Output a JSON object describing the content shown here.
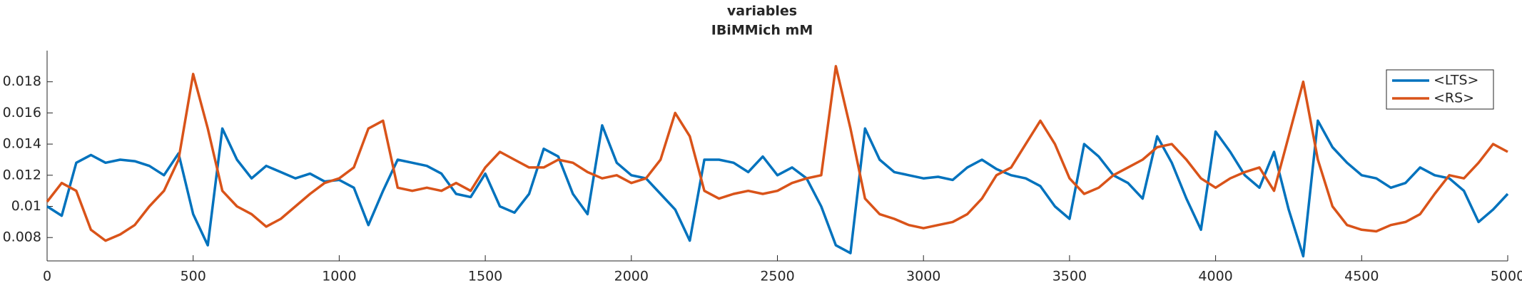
{
  "chart_data": {
    "type": "line",
    "title": "variables",
    "subtitle": "IBiMMich mM",
    "x": [
      0,
      50,
      100,
      150,
      200,
      250,
      300,
      350,
      400,
      450,
      500,
      550,
      600,
      650,
      700,
      750,
      800,
      850,
      900,
      950,
      1000,
      1050,
      1100,
      1150,
      1200,
      1250,
      1300,
      1350,
      1400,
      1450,
      1500,
      1550,
      1600,
      1650,
      1700,
      1750,
      1800,
      1850,
      1900,
      1950,
      2000,
      2050,
      2100,
      2150,
      2200,
      2250,
      2300,
      2350,
      2400,
      2450,
      2500,
      2550,
      2600,
      2650,
      2700,
      2750,
      2800,
      2850,
      2900,
      2950,
      3000,
      3050,
      3100,
      3150,
      3200,
      3250,
      3300,
      3350,
      3400,
      3450,
      3500,
      3550,
      3600,
      3650,
      3700,
      3750,
      3800,
      3850,
      3900,
      3950,
      4000,
      4050,
      4100,
      4150,
      4200,
      4250,
      4300,
      4350,
      4400,
      4450,
      4500,
      4550,
      4600,
      4650,
      4700,
      4750,
      4800,
      4850,
      4900,
      4950,
      5000
    ],
    "series": [
      {
        "name": "<LTS>",
        "color": "#0072bd",
        "values": [
          0.01,
          0.0094,
          0.0128,
          0.0133,
          0.0128,
          0.013,
          0.0129,
          0.0126,
          0.012,
          0.0134,
          0.0095,
          0.0075,
          0.015,
          0.013,
          0.0118,
          0.0126,
          0.0122,
          0.0118,
          0.0121,
          0.0116,
          0.0117,
          0.0112,
          0.0088,
          0.011,
          0.013,
          0.0128,
          0.0126,
          0.0121,
          0.0108,
          0.0106,
          0.0121,
          0.01,
          0.0096,
          0.0108,
          0.0137,
          0.0132,
          0.0108,
          0.0095,
          0.0152,
          0.0128,
          0.012,
          0.0118,
          0.0108,
          0.0098,
          0.0078,
          0.013,
          0.013,
          0.0128,
          0.0122,
          0.0132,
          0.012,
          0.0125,
          0.0118,
          0.01,
          0.0075,
          0.007,
          0.015,
          0.013,
          0.0122,
          0.012,
          0.0118,
          0.0119,
          0.0117,
          0.0125,
          0.013,
          0.0124,
          0.012,
          0.0118,
          0.0113,
          0.01,
          0.0092,
          0.014,
          0.0132,
          0.012,
          0.0115,
          0.0105,
          0.0145,
          0.0128,
          0.0105,
          0.0085,
          0.0148,
          0.0135,
          0.012,
          0.0112,
          0.0135,
          0.0098,
          0.0068,
          0.0155,
          0.0138,
          0.0128,
          0.012,
          0.0118,
          0.0112,
          0.0115,
          0.0125,
          0.012,
          0.0118,
          0.011,
          0.009,
          0.0098,
          0.0108
        ]
      },
      {
        "name": "<RS>",
        "color": "#d95319",
        "values": [
          0.0103,
          0.0115,
          0.011,
          0.0085,
          0.0078,
          0.0082,
          0.0088,
          0.01,
          0.011,
          0.013,
          0.0185,
          0.015,
          0.011,
          0.01,
          0.0095,
          0.0087,
          0.0092,
          0.01,
          0.0108,
          0.0115,
          0.0118,
          0.0125,
          0.015,
          0.0155,
          0.0112,
          0.011,
          0.0112,
          0.011,
          0.0115,
          0.011,
          0.0125,
          0.0135,
          0.013,
          0.0125,
          0.0125,
          0.013,
          0.0128,
          0.0122,
          0.0118,
          0.012,
          0.0115,
          0.0118,
          0.013,
          0.016,
          0.0145,
          0.011,
          0.0105,
          0.0108,
          0.011,
          0.0108,
          0.011,
          0.0115,
          0.0118,
          0.012,
          0.019,
          0.015,
          0.0105,
          0.0095,
          0.0092,
          0.0088,
          0.0086,
          0.0088,
          0.009,
          0.0095,
          0.0105,
          0.012,
          0.0125,
          0.014,
          0.0155,
          0.014,
          0.0118,
          0.0108,
          0.0112,
          0.012,
          0.0125,
          0.013,
          0.0138,
          0.014,
          0.013,
          0.0118,
          0.0112,
          0.0118,
          0.0122,
          0.0125,
          0.011,
          0.0145,
          0.018,
          0.013,
          0.01,
          0.0088,
          0.0085,
          0.0084,
          0.0088,
          0.009,
          0.0095,
          0.0108,
          0.012,
          0.0118,
          0.0128,
          0.014,
          0.0135
        ]
      }
    ],
    "xlim": [
      0,
      5000
    ],
    "xticks": [
      0,
      500,
      1000,
      1500,
      2000,
      2500,
      3000,
      3500,
      4000,
      4500,
      5000
    ],
    "ylim": [
      0.0065,
      0.02
    ],
    "yticks": [
      0.008,
      0.01,
      0.012,
      0.014,
      0.016,
      0.018
    ],
    "legend": "northeast"
  }
}
